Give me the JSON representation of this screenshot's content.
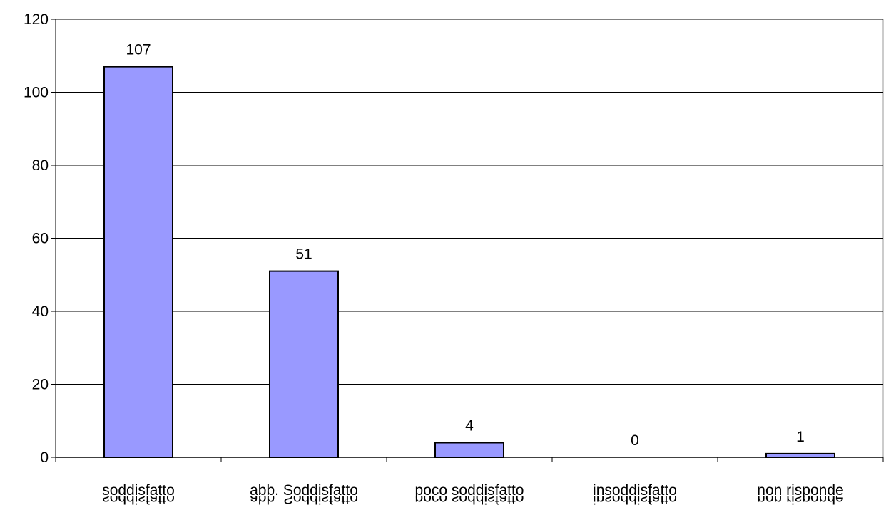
{
  "chart_data": {
    "type": "bar",
    "categories": [
      "soddisfatto",
      "abb. Soddisfatto",
      "poco soddisfatto",
      "insoddisfatto",
      "non risponde"
    ],
    "values": [
      107,
      51,
      4,
      0,
      1
    ],
    "data_labels": [
      "107",
      "51",
      "4",
      "0",
      "1"
    ],
    "y_ticks": [
      "0",
      "20",
      "40",
      "60",
      "80",
      "100",
      "120"
    ],
    "ylim": [
      0,
      120
    ],
    "title": "",
    "xlabel": "",
    "ylabel": "",
    "grid": true,
    "colors": {
      "bar_fill": "#9999ff",
      "bar_stroke": "#000000",
      "grid": "#000000",
      "axis": "#000000",
      "plot_border": "#999999"
    }
  }
}
